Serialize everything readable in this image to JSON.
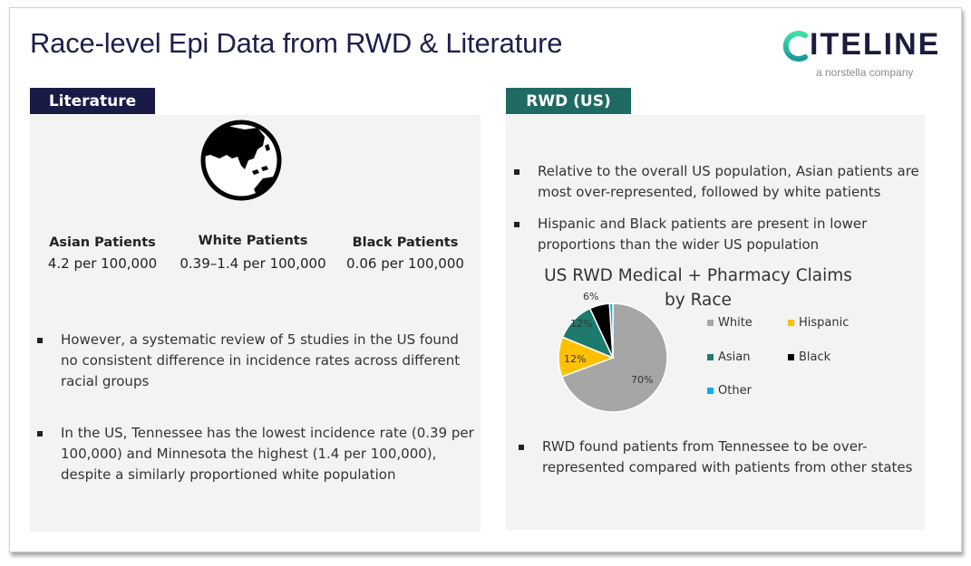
{
  "slide": {
    "title": "Race-level Epi Data from RWD & Literature",
    "logo": {
      "word": "CITELINE",
      "subtitle": "a norstella company"
    }
  },
  "literature": {
    "tag": "Literature",
    "icon": "globe-asia-icon",
    "stats": [
      {
        "label": "Asian Patients",
        "value": "4.2 per 100,000"
      },
      {
        "label": "White Patients",
        "value": "0.39–1.4 per 100,000"
      },
      {
        "label": "Black Patients",
        "value": "0.06 per 100,000"
      }
    ],
    "bullets": [
      "However, a systematic review of 5 studies in the US found no consistent difference in incidence rates across different racial groups",
      "In the US, Tennessee has the lowest incidence rate (0.39 per 100,000) and Minnesota the highest (1.4 per 100,000), despite a similarly proportioned white population"
    ]
  },
  "rwd": {
    "tag": "RWD (US)",
    "bullets": [
      "Relative to the overall US population, Asian patients are most over-represented, followed by white patients",
      "Hispanic and Black patients are present in lower proportions than the wider US population",
      "RWD found patients from Tennessee to be over-represented compared with patients from other states"
    ]
  },
  "colors": {
    "title": "#1e1f4b",
    "lit_tag": "#1a1a46",
    "rwd_tag": "#1f6b63",
    "white": "#a6a6a6",
    "hispanic": "#ffc000",
    "asian": "#1f7a6e",
    "black": "#000000",
    "other": "#00b0f0"
  },
  "chart_data": {
    "type": "pie",
    "title": "US RWD Medical + Pharmacy Claims by Race",
    "categories": [
      "White",
      "Hispanic",
      "Asian",
      "Black",
      "Other"
    ],
    "values": [
      70,
      12,
      12,
      6,
      1
    ],
    "labels": [
      "70%",
      "12%",
      "12%",
      "6%",
      ""
    ],
    "colors": [
      "#a6a6a6",
      "#ffc000",
      "#1f7a6e",
      "#000000",
      "#00b0f0"
    ],
    "legend_position": "right",
    "start_angle": "12 o'clock, clockwise"
  }
}
